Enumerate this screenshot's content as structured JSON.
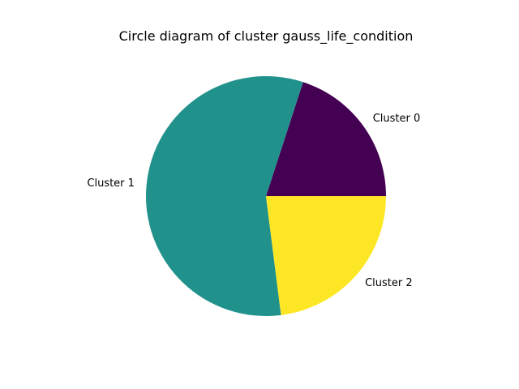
{
  "chart_data": {
    "type": "pie",
    "title": "Circle diagram of cluster gauss_life_condition",
    "labels": [
      "Cluster 0",
      "Cluster 1",
      "Cluster 2"
    ],
    "values": [
      20,
      57,
      23
    ],
    "colors": [
      "#440154",
      "#21918c",
      "#fde725"
    ],
    "start_angle_deg": 0,
    "direction": "counterclockwise",
    "legend": "none",
    "grid": false
  }
}
